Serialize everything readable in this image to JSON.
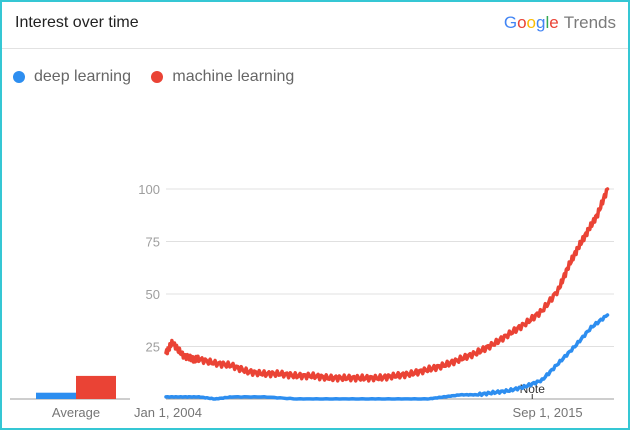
{
  "header": {
    "title": "Interest over time",
    "brand": {
      "letters": [
        {
          "ch": "G",
          "color": "#4285F4"
        },
        {
          "ch": "o",
          "color": "#EA4335"
        },
        {
          "ch": "o",
          "color": "#FBBC05"
        },
        {
          "ch": "g",
          "color": "#4285F4"
        },
        {
          "ch": "l",
          "color": "#34A853"
        },
        {
          "ch": "e",
          "color": "#EA4335"
        }
      ],
      "suffix": "Trends"
    }
  },
  "legend": [
    {
      "label": "deep learning",
      "color": "#2d8ef0"
    },
    {
      "label": "machine learning",
      "color": "#ea4335"
    }
  ],
  "chart_data": {
    "type": "line",
    "y_ticks": [
      25,
      50,
      75,
      100
    ],
    "ylim": [
      0,
      100
    ],
    "x_tick_labels": [
      "Jan 1, 2004",
      "Sep 1, 2015"
    ],
    "average_label": "Average",
    "note_label": "Note",
    "gridlines": true,
    "series": [
      {
        "name": "deep learning",
        "color": "#2d8ef0",
        "average": 3,
        "x": [
          2004.0,
          2004.5,
          2005.0,
          2005.5,
          2006.0,
          2007.0,
          2008.0,
          2009.0,
          2010.0,
          2011.0,
          2012.0,
          2012.5,
          2013.0,
          2013.5,
          2014.0,
          2014.5,
          2015.0,
          2015.5,
          2016.0,
          2016.5,
          2017.0,
          2017.5
        ],
        "values": [
          1,
          1,
          1,
          0,
          1,
          1,
          0,
          0,
          0,
          0,
          0,
          1,
          2,
          2,
          3,
          4,
          6,
          9,
          17,
          25,
          34,
          40
        ]
      },
      {
        "name": "machine learning",
        "color": "#ea4335",
        "average": 11,
        "x": [
          2004.0,
          2004.2,
          2004.5,
          2004.8,
          2005.0,
          2005.5,
          2006.0,
          2006.5,
          2007.0,
          2007.5,
          2008.0,
          2008.5,
          2009.0,
          2009.5,
          2010.0,
          2010.5,
          2011.0,
          2011.5,
          2012.0,
          2012.5,
          2013.0,
          2013.5,
          2014.0,
          2014.5,
          2015.0,
          2015.5,
          2016.0,
          2016.3,
          2016.6,
          2016.9,
          2017.2,
          2017.5
        ],
        "values": [
          22,
          27,
          21,
          19,
          19,
          17,
          16,
          13,
          12,
          12,
          11,
          11,
          10,
          10,
          10,
          10,
          11,
          12,
          14,
          16,
          19,
          22,
          26,
          31,
          36,
          42,
          52,
          63,
          72,
          80,
          88,
          100
        ]
      }
    ]
  }
}
